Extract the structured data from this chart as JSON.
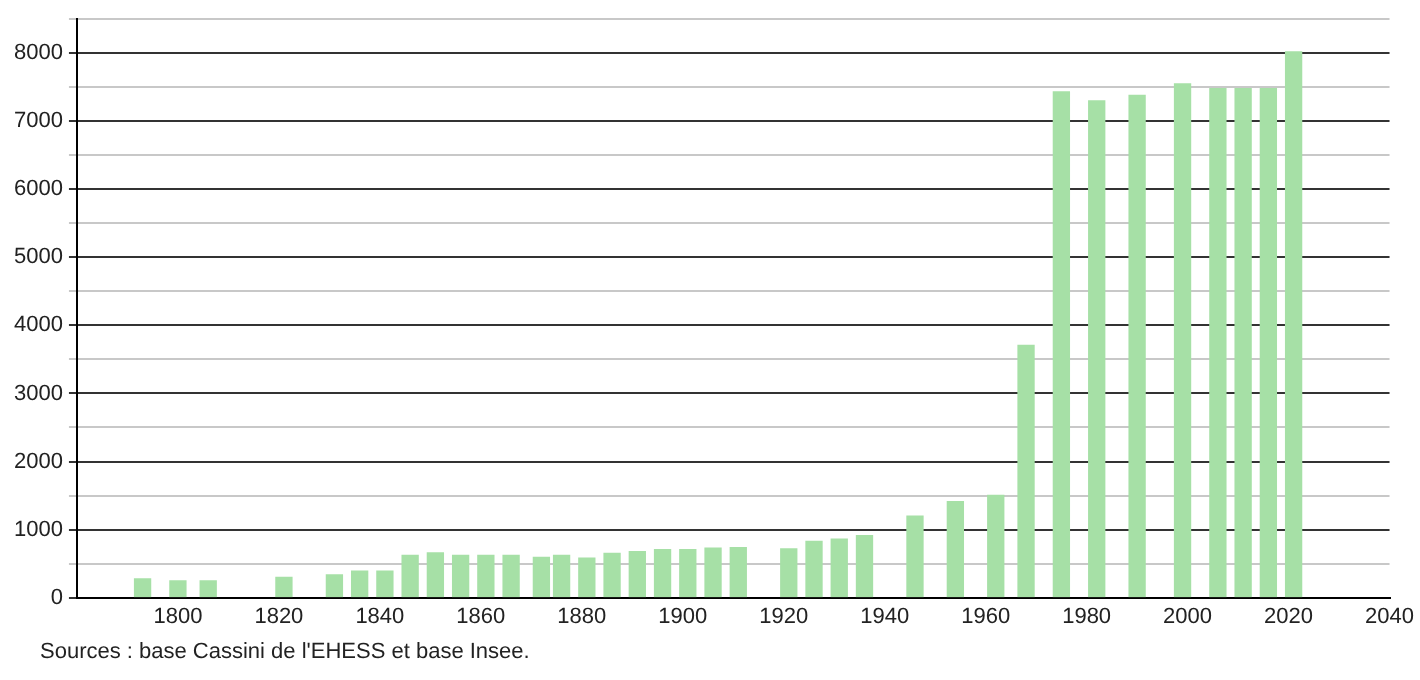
{
  "chart_data": {
    "type": "bar",
    "color": "#a6e0a6",
    "x": [
      1793,
      1800,
      1806,
      1821,
      1831,
      1836,
      1841,
      1846,
      1851,
      1856,
      1861,
      1866,
      1872,
      1876,
      1881,
      1886,
      1891,
      1896,
      1901,
      1906,
      1911,
      1921,
      1926,
      1931,
      1936,
      1946,
      1954,
      1962,
      1968,
      1975,
      1982,
      1990,
      1999,
      2006,
      2011,
      2016,
      2021
    ],
    "values": [
      275,
      245,
      245,
      295,
      333,
      390,
      390,
      620,
      655,
      620,
      620,
      620,
      590,
      620,
      580,
      650,
      675,
      705,
      705,
      725,
      735,
      715,
      825,
      860,
      910,
      1195,
      1410,
      1500,
      3705,
      7430,
      7300,
      7380,
      7550,
      7480,
      7480,
      7480,
      8020
    ],
    "xlim": [
      1780,
      2040
    ],
    "xticks": [
      1800,
      1820,
      1840,
      1860,
      1880,
      1900,
      1920,
      1940,
      1960,
      1980,
      2000,
      2020,
      2040
    ],
    "ylim": [
      0,
      8500
    ],
    "yticks": [
      0,
      {
        "value": 500,
        "label": null
      },
      1000,
      {
        "value": 1500,
        "label": null
      },
      2000,
      {
        "value": 2500,
        "label": null
      },
      3000,
      {
        "value": 3500,
        "label": null
      },
      4000,
      {
        "value": 4500,
        "label": null
      },
      5000,
      {
        "value": 5500,
        "label": null
      },
      6000,
      {
        "value": 6500,
        "label": null
      },
      7000,
      {
        "value": 7500,
        "label": null
      },
      8000,
      {
        "value": 8500,
        "label": null
      }
    ],
    "grid": "y",
    "legend": false,
    "annotations": [
      "Sources : base Cassini de l'EHESS et base Insee."
    ]
  }
}
